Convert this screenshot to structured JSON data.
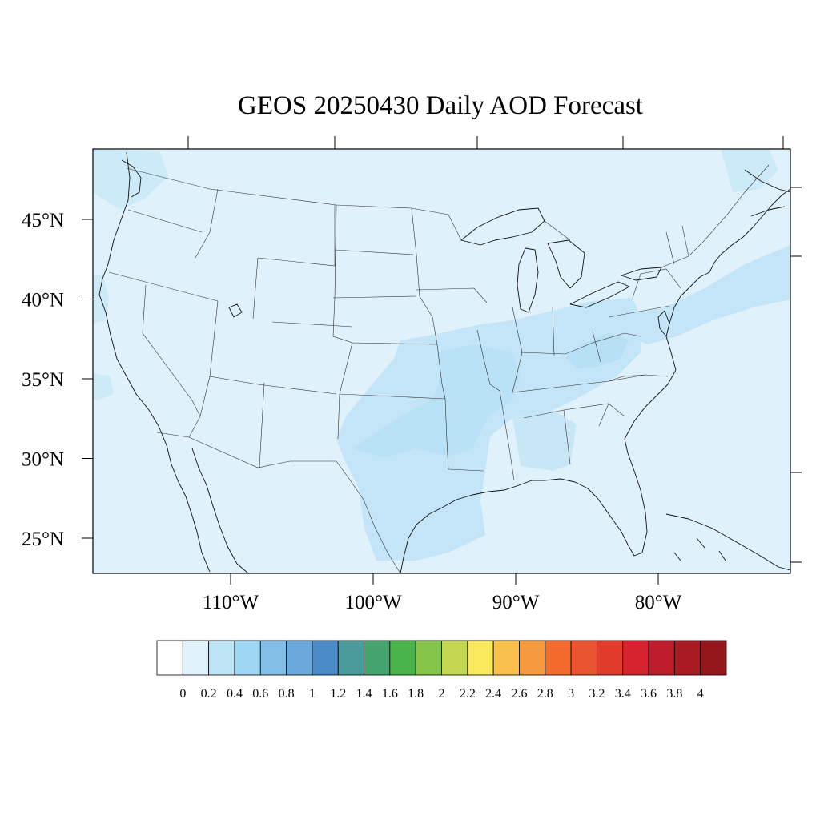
{
  "title": "GEOS 20250430 Daily AOD Forecast",
  "map": {
    "projection": "lambert-conformal",
    "lat_labels": [
      {
        "lat": 45,
        "text": "45°N"
      },
      {
        "lat": 40,
        "text": "40°N"
      },
      {
        "lat": 35,
        "text": "35°N"
      },
      {
        "lat": 30,
        "text": "30°N"
      },
      {
        "lat": 25,
        "text": "25°N"
      }
    ],
    "lon_labels": [
      {
        "lon": -110,
        "text": "110°W"
      },
      {
        "lon": -100,
        "text": "100°W"
      },
      {
        "lon": -90,
        "text": "90°W"
      },
      {
        "lon": -80,
        "text": "80°W"
      }
    ],
    "colors": {
      "background": "#dff1fa",
      "plume_light": "#c5e6f7",
      "plume": "#bee4f6",
      "coast": "#000000"
    }
  },
  "colorbar": {
    "orientation": "horizontal",
    "position": "bottom",
    "colors": [
      "#ffffff",
      "#e0f3fb",
      "#bee5f6",
      "#9fd6f3",
      "#82bee6",
      "#6aa7db",
      "#4a8ac7",
      "#4a9b9c",
      "#46a56e",
      "#48b44a",
      "#85c54a",
      "#c3d753",
      "#f8e85c",
      "#f9c04c",
      "#f79a3e",
      "#f26b2d",
      "#ea5530",
      "#e23c2c",
      "#d52330",
      "#bf1d2c",
      "#a81b23",
      "#95161b"
    ],
    "labels": [
      "0",
      "0.2",
      "0.4",
      "0.6",
      "0.8",
      "1",
      "1.2",
      "1.4",
      "1.6",
      "1.8",
      "2",
      "2.2",
      "2.4",
      "2.6",
      "2.8",
      "3",
      "3.2",
      "3.4",
      "3.6",
      "3.8",
      "4"
    ]
  }
}
